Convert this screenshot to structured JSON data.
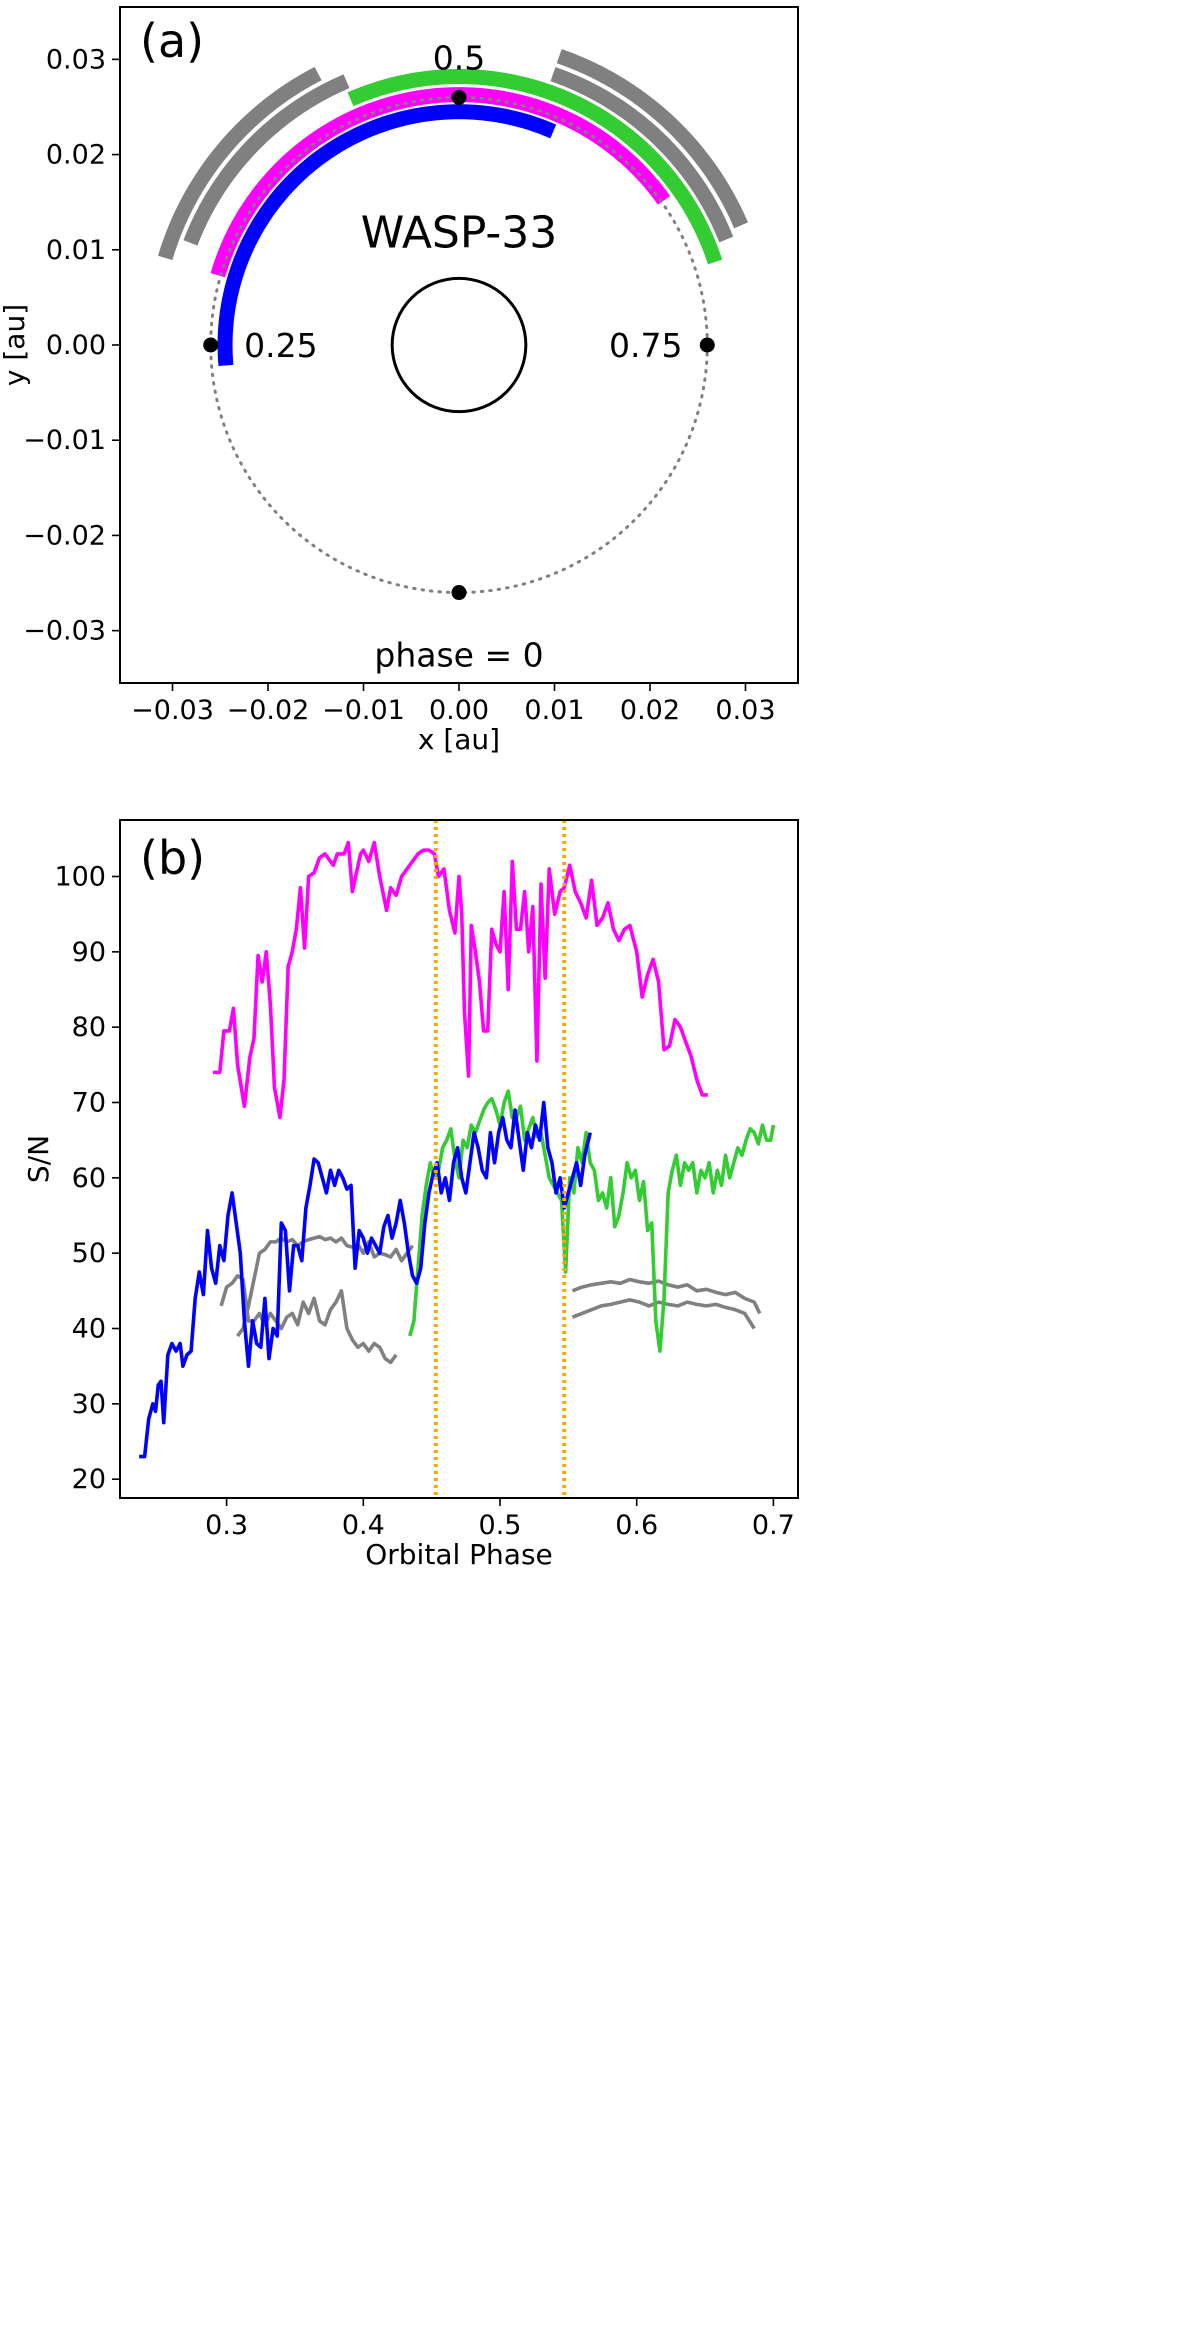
{
  "chart_data": [
    {
      "type": "scatter",
      "panel_label": "(a)",
      "title": "WASP-33",
      "xlabel": "x [au]",
      "ylabel": "y [au]",
      "xlim": [
        -0.0355,
        0.0355
      ],
      "ylim": [
        -0.0355,
        0.0355
      ],
      "xticks": [
        "−0.03",
        "−0.02",
        "−0.01",
        "0.00",
        "0.01",
        "0.02",
        "0.03"
      ],
      "yticks": [
        "−0.03",
        "−0.02",
        "−0.01",
        "0.00",
        "0.01",
        "0.02",
        "0.03"
      ],
      "orbit_radius": 0.026,
      "star_radius": 0.007,
      "colors": {
        "magenta": "#ff00ff",
        "green": "#33cc33",
        "blue": "#0000ff",
        "gray": "#808080",
        "orbit": "#808080"
      },
      "phase_markers": [
        {
          "phase": 0,
          "label": "phase = 0"
        },
        {
          "phase": 0.25,
          "label": "0.25"
        },
        {
          "phase": 0.5,
          "label": "0.5"
        },
        {
          "phase": 0.75,
          "label": "0.75"
        }
      ],
      "phase_arcs": [
        {
          "name": "blue",
          "color": "#0000ff",
          "phase_start": 0.236,
          "phase_end": 0.566,
          "radius": 0.0245
        },
        {
          "name": "magenta",
          "color": "#ff00ff",
          "phase_start": 0.295,
          "phase_end": 0.652,
          "radius": 0.0263
        },
        {
          "name": "green",
          "color": "#33cc33",
          "phase_start": 0.434,
          "phase_end": 0.7,
          "radius": 0.0282
        },
        {
          "name": "gray-1",
          "color": "#808080",
          "phase_start": 0.308,
          "phase_end": 0.436,
          "radius": 0.0301
        },
        {
          "name": "gray-2",
          "color": "#808080",
          "phase_start": 0.296,
          "phase_end": 0.424,
          "radius": 0.0321
        },
        {
          "name": "gray-3",
          "color": "#808080",
          "phase_start": 0.553,
          "phase_end": 0.69,
          "radius": 0.0301
        },
        {
          "name": "gray-4",
          "color": "#808080",
          "phase_start": 0.553,
          "phase_end": 0.686,
          "radius": 0.0321
        }
      ]
    },
    {
      "type": "line",
      "panel_label": "(b)",
      "xlabel": "Orbital Phase",
      "ylabel": "S/N",
      "xlim": [
        0.222,
        0.718
      ],
      "ylim": [
        17.5,
        107.5
      ],
      "xticks": [
        "0.3",
        "0.4",
        "0.5",
        "0.6",
        "0.7"
      ],
      "yticks": [
        "20",
        "30",
        "40",
        "50",
        "60",
        "70",
        "80",
        "90",
        "100"
      ],
      "vlines": {
        "color": "#ffa500",
        "x": [
          0.453,
          0.547
        ]
      },
      "series": [
        {
          "name": "magenta",
          "color": "#ff00ff",
          "x": [
            0.29,
            0.295,
            0.298,
            0.302,
            0.305,
            0.308,
            0.313,
            0.317,
            0.32,
            0.323,
            0.326,
            0.329,
            0.332,
            0.335,
            0.339,
            0.342,
            0.345,
            0.348,
            0.351,
            0.354,
            0.357,
            0.36,
            0.364,
            0.368,
            0.372,
            0.378,
            0.381,
            0.386,
            0.389,
            0.392,
            0.398,
            0.4,
            0.404,
            0.408,
            0.412,
            0.417,
            0.42,
            0.424,
            0.428,
            0.432,
            0.436,
            0.44,
            0.444,
            0.448,
            0.452,
            0.455,
            0.459,
            0.463,
            0.467,
            0.47,
            0.472,
            0.474,
            0.477,
            0.479,
            0.482,
            0.485,
            0.488,
            0.491,
            0.494,
            0.497,
            0.5,
            0.503,
            0.506,
            0.509,
            0.512,
            0.515,
            0.518,
            0.521,
            0.524,
            0.527,
            0.53,
            0.533,
            0.536,
            0.54,
            0.544,
            0.547,
            0.551,
            0.555,
            0.559,
            0.563,
            0.567,
            0.571,
            0.575,
            0.579,
            0.583,
            0.587,
            0.591,
            0.595,
            0.6,
            0.604,
            0.608,
            0.612,
            0.616,
            0.62,
            0.624,
            0.628,
            0.632,
            0.636,
            0.64,
            0.644,
            0.648,
            0.652
          ],
          "y": [
            74.0,
            74.0,
            79.5,
            79.5,
            82.5,
            75.0,
            69.5,
            76.0,
            78.5,
            89.5,
            86.0,
            90.0,
            83.0,
            72.0,
            68.0,
            73.0,
            88.0,
            90.0,
            93.0,
            98.5,
            90.5,
            100.0,
            100.5,
            102.5,
            103.0,
            101.5,
            103.0,
            103.0,
            104.5,
            98.0,
            103.0,
            103.5,
            102.0,
            104.5,
            100.0,
            95.5,
            98.5,
            97.5,
            100.0,
            101.0,
            102.0,
            103.0,
            103.5,
            103.5,
            103.0,
            100.0,
            101.0,
            95.5,
            92.5,
            100.0,
            95.0,
            82.0,
            73.5,
            93.5,
            90.0,
            86.0,
            79.5,
            79.5,
            93.0,
            91.0,
            90.0,
            98.0,
            85.0,
            102.0,
            93.0,
            93.0,
            98.0,
            90.0,
            96.0,
            75.5,
            99.0,
            86.5,
            101.0,
            95.0,
            98.0,
            98.5,
            101.5,
            98.0,
            96.5,
            94.5,
            99.5,
            93.5,
            94.5,
            96.5,
            93.0,
            91.5,
            93.0,
            93.5,
            90.0,
            84.0,
            87.0,
            89.0,
            86.0,
            77.0,
            77.5,
            81.0,
            80.0,
            78.0,
            76.0,
            73.0,
            71.0,
            71.0
          ]
        },
        {
          "name": "green",
          "color": "#33cc33",
          "x": [
            0.434,
            0.437,
            0.44,
            0.443,
            0.446,
            0.449,
            0.452,
            0.455,
            0.458,
            0.461,
            0.464,
            0.467,
            0.47,
            0.473,
            0.476,
            0.479,
            0.482,
            0.485,
            0.488,
            0.491,
            0.494,
            0.497,
            0.5,
            0.503,
            0.506,
            0.509,
            0.512,
            0.515,
            0.518,
            0.521,
            0.524,
            0.527,
            0.53,
            0.533,
            0.536,
            0.539,
            0.542,
            0.545,
            0.548,
            0.551,
            0.554,
            0.557,
            0.56,
            0.563,
            0.566,
            0.569,
            0.572,
            0.575,
            0.578,
            0.581,
            0.584,
            0.587,
            0.59,
            0.593,
            0.596,
            0.599,
            0.602,
            0.605,
            0.608,
            0.611,
            0.614,
            0.617,
            0.62,
            0.623,
            0.626,
            0.629,
            0.632,
            0.635,
            0.638,
            0.641,
            0.644,
            0.647,
            0.65,
            0.653,
            0.656,
            0.659,
            0.662,
            0.665,
            0.668,
            0.671,
            0.674,
            0.677,
            0.68,
            0.683,
            0.686,
            0.689,
            0.692,
            0.695,
            0.698,
            0.7
          ],
          "y": [
            39.0,
            41.0,
            48.0,
            55.0,
            59.0,
            62.0,
            60.0,
            61.0,
            64.0,
            65.0,
            66.5,
            62.5,
            60.0,
            65.0,
            64.0,
            67.0,
            66.0,
            67.5,
            69.0,
            70.0,
            70.5,
            69.0,
            67.0,
            70.0,
            71.5,
            68.0,
            68.0,
            69.5,
            65.0,
            66.5,
            68.0,
            65.5,
            66.0,
            63.0,
            60.0,
            59.0,
            58.0,
            57.0,
            47.5,
            60.0,
            58.0,
            64.0,
            62.0,
            66.0,
            62.0,
            61.0,
            57.0,
            58.0,
            56.0,
            60.0,
            53.5,
            55.0,
            58.0,
            62.0,
            60.0,
            61.0,
            57.0,
            59.5,
            53.0,
            54.0,
            41.0,
            37.0,
            44.0,
            58.0,
            61.0,
            63.0,
            59.0,
            62.0,
            61.0,
            62.0,
            58.0,
            61.0,
            60.0,
            62.0,
            58.0,
            61.0,
            59.0,
            63.0,
            60.0,
            62.0,
            64.0,
            63.0,
            65.0,
            66.5,
            66.0,
            64.5,
            67.0,
            65.0,
            65.0,
            67.0
          ]
        },
        {
          "name": "blue",
          "color": "#0000ff",
          "x": [
            0.236,
            0.24,
            0.243,
            0.246,
            0.248,
            0.25,
            0.252,
            0.254,
            0.257,
            0.26,
            0.263,
            0.266,
            0.268,
            0.271,
            0.274,
            0.277,
            0.28,
            0.283,
            0.286,
            0.289,
            0.292,
            0.295,
            0.298,
            0.301,
            0.304,
            0.307,
            0.31,
            0.313,
            0.316,
            0.319,
            0.322,
            0.325,
            0.328,
            0.331,
            0.334,
            0.337,
            0.34,
            0.343,
            0.346,
            0.349,
            0.352,
            0.355,
            0.358,
            0.361,
            0.364,
            0.367,
            0.37,
            0.373,
            0.376,
            0.379,
            0.382,
            0.385,
            0.388,
            0.391,
            0.394,
            0.397,
            0.4,
            0.403,
            0.406,
            0.409,
            0.412,
            0.415,
            0.418,
            0.421,
            0.424,
            0.427,
            0.43,
            0.433,
            0.436,
            0.439,
            0.442,
            0.445,
            0.448,
            0.451,
            0.454,
            0.457,
            0.46,
            0.463,
            0.466,
            0.469,
            0.472,
            0.475,
            0.478,
            0.481,
            0.484,
            0.487,
            0.49,
            0.493,
            0.496,
            0.499,
            0.502,
            0.505,
            0.508,
            0.511,
            0.514,
            0.517,
            0.52,
            0.523,
            0.526,
            0.529,
            0.532,
            0.535,
            0.538,
            0.541,
            0.544,
            0.547,
            0.55,
            0.553,
            0.556,
            0.559,
            0.562,
            0.566
          ],
          "y": [
            23.0,
            23.0,
            28.0,
            30.0,
            29.0,
            32.5,
            33.0,
            27.5,
            36.5,
            38.0,
            37.0,
            38.0,
            35.0,
            36.5,
            37.0,
            44.0,
            47.5,
            44.5,
            53.0,
            48.0,
            46.0,
            51.0,
            49.0,
            55.0,
            58.0,
            54.0,
            50.0,
            41.0,
            35.0,
            41.0,
            38.0,
            37.5,
            44.0,
            36.0,
            40.0,
            39.0,
            54.0,
            53.0,
            45.0,
            51.0,
            51.0,
            49.0,
            56.0,
            59.0,
            62.5,
            62.0,
            60.0,
            58.0,
            61.0,
            59.0,
            61.0,
            60.0,
            58.5,
            59.0,
            48.0,
            53.0,
            52.0,
            50.0,
            52.0,
            51.0,
            50.0,
            53.5,
            55.0,
            52.0,
            54.0,
            57.0,
            54.0,
            50.0,
            47.0,
            46.0,
            48.0,
            54.0,
            58.0,
            60.5,
            62.0,
            58.0,
            60.0,
            57.0,
            62.0,
            64.0,
            60.0,
            58.0,
            62.0,
            66.0,
            64.0,
            61.0,
            60.0,
            66.0,
            62.0,
            66.0,
            68.0,
            65.0,
            64.0,
            69.0,
            65.0,
            61.0,
            66.0,
            64.0,
            67.0,
            65.0,
            70.0,
            64.0,
            62.0,
            58.0,
            60.0,
            56.0,
            58.0,
            60.0,
            62.0,
            59.0,
            63.0,
            66.0
          ]
        },
        {
          "name": "gray-1",
          "color": "#808080",
          "x": [
            0.308,
            0.312,
            0.316,
            0.32,
            0.324,
            0.328,
            0.332,
            0.336,
            0.34,
            0.344,
            0.348,
            0.352,
            0.356,
            0.36,
            0.364,
            0.368,
            0.372,
            0.376,
            0.38,
            0.384,
            0.388,
            0.392,
            0.396,
            0.4,
            0.404,
            0.408,
            0.412,
            0.416,
            0.42,
            0.424,
            0.428,
            0.432,
            0.436
          ],
          "y": [
            39.0,
            40.0,
            43.0,
            46.5,
            50.0,
            50.5,
            51.5,
            51.5,
            52.0,
            51.5,
            51.8,
            51.0,
            51.5,
            51.8,
            52.0,
            52.2,
            51.8,
            52.0,
            51.5,
            52.0,
            51.0,
            50.8,
            51.2,
            50.0,
            51.5,
            49.5,
            50.0,
            49.8,
            49.5,
            50.5,
            49.0,
            50.0,
            51.0
          ]
        },
        {
          "name": "gray-2",
          "color": "#808080",
          "x": [
            0.296,
            0.3,
            0.304,
            0.308,
            0.312,
            0.316,
            0.32,
            0.324,
            0.328,
            0.332,
            0.336,
            0.34,
            0.344,
            0.348,
            0.352,
            0.356,
            0.36,
            0.364,
            0.368,
            0.372,
            0.376,
            0.38,
            0.384,
            0.388,
            0.392,
            0.396,
            0.4,
            0.404,
            0.408,
            0.412,
            0.416,
            0.42,
            0.424
          ],
          "y": [
            43.0,
            45.5,
            46.0,
            47.0,
            46.5,
            41.0,
            41.0,
            42.0,
            40.5,
            42.0,
            41.0,
            40.0,
            41.5,
            42.0,
            40.5,
            43.5,
            42.0,
            44.0,
            41.0,
            40.5,
            42.5,
            43.5,
            45.0,
            40.0,
            38.5,
            37.5,
            38.0,
            37.0,
            38.0,
            37.5,
            36.0,
            35.5,
            36.5
          ]
        },
        {
          "name": "gray-3",
          "color": "#808080",
          "x": [
            0.553,
            0.56,
            0.567,
            0.574,
            0.581,
            0.588,
            0.595,
            0.602,
            0.609,
            0.616,
            0.623,
            0.63,
            0.637,
            0.644,
            0.651,
            0.658,
            0.665,
            0.672,
            0.679,
            0.686,
            0.69
          ],
          "y": [
            45.0,
            45.5,
            45.8,
            46.0,
            46.2,
            46.0,
            46.5,
            46.2,
            46.0,
            46.3,
            45.8,
            45.5,
            45.8,
            45.0,
            45.2,
            44.8,
            44.5,
            44.8,
            44.0,
            43.5,
            42.0
          ]
        },
        {
          "name": "gray-4",
          "color": "#808080",
          "x": [
            0.553,
            0.56,
            0.567,
            0.574,
            0.581,
            0.588,
            0.595,
            0.602,
            0.609,
            0.616,
            0.623,
            0.63,
            0.637,
            0.644,
            0.651,
            0.658,
            0.665,
            0.672,
            0.679,
            0.686
          ],
          "y": [
            41.5,
            42.0,
            42.5,
            43.0,
            43.2,
            43.5,
            43.8,
            43.5,
            43.0,
            43.5,
            43.2,
            43.0,
            43.5,
            43.2,
            43.0,
            43.2,
            42.8,
            42.5,
            42.0,
            40.0
          ]
        }
      ]
    }
  ]
}
